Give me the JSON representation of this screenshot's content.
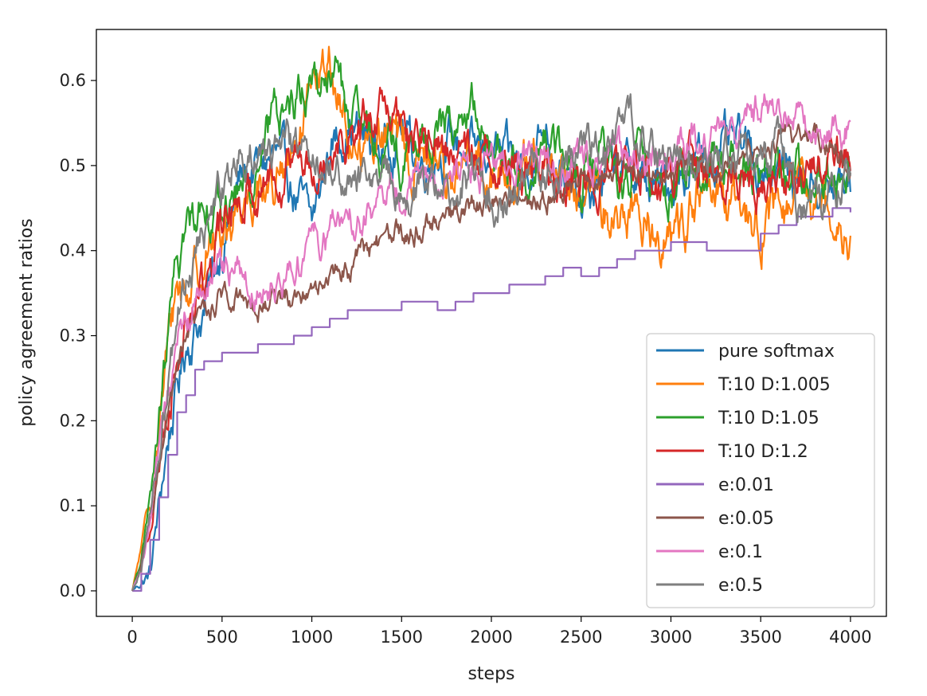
{
  "chart_data": {
    "type": "line",
    "title": "",
    "xlabel": "steps",
    "ylabel": "policy agreement ratios",
    "xlim": [
      -200,
      4200
    ],
    "ylim": [
      -0.03,
      0.66
    ],
    "xticks": [
      0,
      500,
      1000,
      1500,
      2000,
      2500,
      3000,
      3500,
      4000
    ],
    "xtick_labels": [
      "0",
      "500",
      "1000",
      "1500",
      "2000",
      "2500",
      "3000",
      "3500",
      "4000"
    ],
    "yticks": [
      0.0,
      0.1,
      0.2,
      0.3,
      0.4,
      0.5,
      0.6
    ],
    "ytick_labels": [
      "0.0",
      "0.1",
      "0.2",
      "0.3",
      "0.4",
      "0.5",
      "0.6"
    ],
    "legend_position": "lower-right",
    "series": [
      {
        "name": "pure softmax",
        "color": "#1f77b4",
        "noise": 0.018,
        "x": [
          0,
          50,
          100,
          150,
          200,
          300,
          400,
          500,
          600,
          700,
          800,
          900,
          1000,
          1100,
          1200,
          1300,
          1400,
          1500,
          1600,
          1700,
          1800,
          1900,
          2000,
          2100,
          2200,
          2300,
          2400,
          2500,
          2600,
          2700,
          2800,
          2900,
          3000,
          3100,
          3200,
          3300,
          3400,
          3500,
          3600,
          3700,
          3800,
          3900,
          4000
        ],
        "y": [
          0.0,
          0.01,
          0.02,
          0.1,
          0.18,
          0.29,
          0.33,
          0.41,
          0.48,
          0.5,
          0.51,
          0.47,
          0.43,
          0.52,
          0.55,
          0.53,
          0.52,
          0.55,
          0.5,
          0.52,
          0.53,
          0.51,
          0.52,
          0.5,
          0.5,
          0.55,
          0.5,
          0.44,
          0.48,
          0.5,
          0.49,
          0.47,
          0.48,
          0.5,
          0.51,
          0.52,
          0.52,
          0.5,
          0.5,
          0.49,
          0.48,
          0.47,
          0.48
        ]
      },
      {
        "name": "T:10 D:1.005",
        "color": "#ff7f0e",
        "noise": 0.02,
        "x": [
          0,
          50,
          100,
          150,
          200,
          250,
          300,
          400,
          500,
          600,
          700,
          800,
          900,
          1000,
          1050,
          1100,
          1150,
          1200,
          1300,
          1400,
          1500,
          1600,
          1700,
          1800,
          1900,
          2000,
          2100,
          2200,
          2300,
          2400,
          2500,
          2600,
          2700,
          2800,
          2900,
          3000,
          3100,
          3200,
          3300,
          3400,
          3500,
          3600,
          3700,
          3800,
          3900,
          4000
        ],
        "y": [
          0.0,
          0.05,
          0.1,
          0.2,
          0.28,
          0.36,
          0.35,
          0.4,
          0.42,
          0.46,
          0.48,
          0.48,
          0.5,
          0.57,
          0.6,
          0.62,
          0.58,
          0.53,
          0.52,
          0.54,
          0.52,
          0.5,
          0.51,
          0.49,
          0.5,
          0.49,
          0.5,
          0.5,
          0.5,
          0.47,
          0.47,
          0.45,
          0.44,
          0.45,
          0.43,
          0.41,
          0.45,
          0.47,
          0.44,
          0.45,
          0.43,
          0.44,
          0.45,
          0.46,
          0.47,
          0.42
        ]
      },
      {
        "name": "T:10 D:1.05",
        "color": "#2ca02c",
        "noise": 0.018,
        "x": [
          0,
          50,
          100,
          150,
          200,
          250,
          300,
          400,
          500,
          600,
          700,
          800,
          900,
          1000,
          1100,
          1150,
          1200,
          1300,
          1400,
          1500,
          1600,
          1700,
          1800,
          1900,
          2000,
          2100,
          2200,
          2300,
          2400,
          2500,
          2600,
          2700,
          2800,
          2900,
          3000,
          3100,
          3200,
          3300,
          3400,
          3500,
          3600,
          3700,
          3800,
          3900,
          4000
        ],
        "y": [
          0.0,
          0.04,
          0.1,
          0.2,
          0.3,
          0.38,
          0.42,
          0.47,
          0.44,
          0.47,
          0.51,
          0.56,
          0.58,
          0.6,
          0.6,
          0.62,
          0.55,
          0.53,
          0.52,
          0.5,
          0.53,
          0.54,
          0.55,
          0.56,
          0.52,
          0.5,
          0.49,
          0.53,
          0.5,
          0.49,
          0.51,
          0.48,
          0.5,
          0.49,
          0.47,
          0.5,
          0.49,
          0.5,
          0.51,
          0.5,
          0.49,
          0.49,
          0.5,
          0.49,
          0.49
        ]
      },
      {
        "name": "T:10 D:1.2",
        "color": "#d62728",
        "noise": 0.018,
        "x": [
          0,
          50,
          100,
          150,
          200,
          250,
          300,
          400,
          500,
          600,
          700,
          800,
          900,
          1000,
          1100,
          1200,
          1300,
          1400,
          1500,
          1600,
          1700,
          1800,
          1900,
          2000,
          2100,
          2200,
          2300,
          2400,
          2500,
          2600,
          2700,
          2800,
          2900,
          3000,
          3100,
          3200,
          3300,
          3400,
          3500,
          3600,
          3700,
          3800,
          3900,
          4000
        ],
        "y": [
          0.0,
          0.03,
          0.08,
          0.15,
          0.22,
          0.28,
          0.32,
          0.36,
          0.42,
          0.47,
          0.48,
          0.5,
          0.51,
          0.52,
          0.53,
          0.54,
          0.55,
          0.56,
          0.54,
          0.53,
          0.52,
          0.52,
          0.51,
          0.51,
          0.5,
          0.5,
          0.49,
          0.48,
          0.48,
          0.49,
          0.5,
          0.49,
          0.49,
          0.48,
          0.5,
          0.49,
          0.5,
          0.49,
          0.48,
          0.49,
          0.49,
          0.51,
          0.52,
          0.5
        ]
      },
      {
        "name": "e:0.01",
        "color": "#9467bd",
        "noise": 0,
        "step": true,
        "x": [
          0,
          50,
          100,
          150,
          200,
          250,
          300,
          350,
          400,
          500,
          600,
          700,
          800,
          900,
          1000,
          1100,
          1200,
          1300,
          1400,
          1500,
          1600,
          1700,
          1800,
          1900,
          2000,
          2100,
          2200,
          2300,
          2400,
          2500,
          2600,
          2700,
          2800,
          2900,
          3000,
          3100,
          3200,
          3300,
          3400,
          3500,
          3600,
          3700,
          3800,
          3900,
          4000
        ],
        "y": [
          0.0,
          0.02,
          0.06,
          0.11,
          0.16,
          0.21,
          0.23,
          0.26,
          0.27,
          0.28,
          0.28,
          0.29,
          0.29,
          0.3,
          0.31,
          0.32,
          0.33,
          0.33,
          0.33,
          0.34,
          0.34,
          0.33,
          0.34,
          0.35,
          0.35,
          0.36,
          0.36,
          0.37,
          0.38,
          0.37,
          0.38,
          0.39,
          0.4,
          0.4,
          0.41,
          0.41,
          0.4,
          0.4,
          0.4,
          0.42,
          0.43,
          0.44,
          0.44,
          0.45,
          0.445
        ]
      },
      {
        "name": "e:0.05",
        "color": "#8c564b",
        "noise": 0.01,
        "x": [
          0,
          50,
          100,
          150,
          200,
          250,
          300,
          400,
          500,
          600,
          700,
          800,
          900,
          1000,
          1100,
          1200,
          1300,
          1400,
          1500,
          1600,
          1700,
          1800,
          1900,
          2000,
          2100,
          2200,
          2300,
          2400,
          2500,
          2600,
          2700,
          2800,
          2900,
          3000,
          3100,
          3200,
          3300,
          3400,
          3500,
          3600,
          3700,
          3800,
          3900,
          4000
        ],
        "y": [
          0.0,
          0.03,
          0.08,
          0.14,
          0.2,
          0.25,
          0.29,
          0.33,
          0.35,
          0.35,
          0.34,
          0.34,
          0.35,
          0.36,
          0.37,
          0.38,
          0.4,
          0.41,
          0.42,
          0.43,
          0.44,
          0.44,
          0.45,
          0.46,
          0.46,
          0.46,
          0.46,
          0.47,
          0.48,
          0.48,
          0.49,
          0.49,
          0.5,
          0.49,
          0.49,
          0.5,
          0.5,
          0.52,
          0.53,
          0.53,
          0.53,
          0.54,
          0.53,
          0.5
        ]
      },
      {
        "name": "e:0.1",
        "color": "#e377c2",
        "noise": 0.014,
        "x": [
          0,
          50,
          100,
          150,
          200,
          250,
          300,
          400,
          500,
          600,
          700,
          800,
          900,
          1000,
          1100,
          1200,
          1300,
          1400,
          1500,
          1600,
          1700,
          1800,
          1900,
          2000,
          2100,
          2200,
          2300,
          2400,
          2500,
          2600,
          2700,
          2800,
          2900,
          3000,
          3100,
          3200,
          3300,
          3400,
          3500,
          3600,
          3700,
          3800,
          3900,
          4000
        ],
        "y": [
          0.0,
          0.03,
          0.08,
          0.15,
          0.22,
          0.28,
          0.32,
          0.36,
          0.37,
          0.37,
          0.36,
          0.37,
          0.38,
          0.41,
          0.42,
          0.43,
          0.44,
          0.46,
          0.47,
          0.48,
          0.49,
          0.5,
          0.5,
          0.49,
          0.5,
          0.51,
          0.5,
          0.5,
          0.5,
          0.5,
          0.51,
          0.5,
          0.5,
          0.51,
          0.52,
          0.53,
          0.54,
          0.55,
          0.57,
          0.56,
          0.55,
          0.54,
          0.55,
          0.55
        ]
      },
      {
        "name": "e:0.5",
        "color": "#7f7f7f",
        "noise": 0.016,
        "x": [
          0,
          50,
          100,
          150,
          200,
          250,
          300,
          400,
          500,
          600,
          700,
          800,
          900,
          1000,
          1100,
          1200,
          1300,
          1400,
          1500,
          1600,
          1700,
          1800,
          1900,
          2000,
          2100,
          2200,
          2300,
          2400,
          2500,
          2600,
          2700,
          2800,
          2900,
          3000,
          3100,
          3200,
          3300,
          3400,
          3500,
          3600,
          3700,
          3800,
          3900,
          4000
        ],
        "y": [
          0.0,
          0.03,
          0.09,
          0.17,
          0.25,
          0.32,
          0.37,
          0.42,
          0.47,
          0.52,
          0.53,
          0.51,
          0.52,
          0.51,
          0.5,
          0.48,
          0.48,
          0.49,
          0.46,
          0.48,
          0.47,
          0.48,
          0.49,
          0.47,
          0.46,
          0.48,
          0.49,
          0.5,
          0.51,
          0.52,
          0.53,
          0.54,
          0.52,
          0.51,
          0.51,
          0.52,
          0.53,
          0.52,
          0.51,
          0.52,
          0.45,
          0.46,
          0.47,
          0.49
        ]
      }
    ]
  }
}
